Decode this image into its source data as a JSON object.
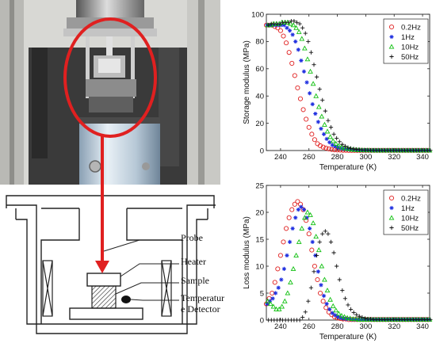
{
  "schematic": {
    "labels": {
      "probe": "Probe",
      "heater": "Heater",
      "sample": "Sample",
      "detector_line1": "Temperatur",
      "detector_line2": "e Detector"
    }
  },
  "colors": {
    "red": "#e02020",
    "blue": "#2030e0",
    "green": "#10c010",
    "black": "#111111",
    "highlight": "#e02020"
  },
  "chart_data": [
    {
      "type": "scatter",
      "title": "",
      "xlabel": "Temperature (K)",
      "ylabel": "Storage modulus (MPa)",
      "xlim": [
        230,
        345
      ],
      "ylim": [
        0,
        100
      ],
      "xticks": [
        240,
        260,
        280,
        300,
        320,
        340
      ],
      "yticks": [
        0,
        20,
        40,
        60,
        80,
        100
      ],
      "legend_position": "top-right",
      "series": [
        {
          "name": "0.2Hz",
          "marker": "circle",
          "color": "#e02020",
          "x0": 230,
          "dx": 2,
          "y": [
            92,
            92,
            92,
            91,
            90,
            88,
            84,
            79,
            72,
            64,
            55,
            46,
            38,
            30,
            23,
            17,
            12,
            8,
            5,
            3.5,
            2.5,
            1.8,
            1.2,
            0.8,
            0.5,
            0.4,
            0.3,
            0.2,
            0.2,
            0.1,
            0.1,
            0.1,
            0.1,
            0.1,
            0.1,
            0.1,
            0.1,
            0.1,
            0.1,
            0.1,
            0.1,
            0.1,
            0.1,
            0.1,
            0.1,
            0.1,
            0.1,
            0.1,
            0.1,
            0.1,
            0.1,
            0.1,
            0.1,
            0.1,
            0.1,
            0.1,
            0.1,
            0.1
          ]
        },
        {
          "name": "1Hz",
          "marker": "star",
          "color": "#2030e0",
          "x0": 230,
          "dx": 2,
          "y": [
            92,
            92,
            92,
            92,
            92,
            92,
            92,
            90,
            88,
            85,
            80,
            74,
            66,
            58,
            50,
            42,
            34,
            27,
            21,
            16,
            12,
            8.5,
            6,
            4,
            3,
            2.2,
            1.6,
            1.2,
            0.9,
            0.6,
            0.5,
            0.4,
            0.3,
            0.2,
            0.2,
            0.2,
            0.1,
            0.1,
            0.1,
            0.1,
            0.1,
            0.1,
            0.1,
            0.1,
            0.1,
            0.1,
            0.1,
            0.1,
            0.1,
            0.1,
            0.1,
            0.1,
            0.1,
            0.1,
            0.1,
            0.1,
            0.1,
            0.1
          ]
        },
        {
          "name": "10Hz",
          "marker": "triangle",
          "color": "#10c010",
          "x0": 230,
          "dx": 2,
          "y": [
            92,
            92,
            93,
            93,
            93,
            94,
            94,
            94,
            93,
            92,
            90,
            87,
            82,
            75,
            67,
            58,
            49,
            40,
            32,
            25,
            19,
            14,
            10,
            7,
            5,
            3.5,
            2.5,
            1.8,
            1.3,
            1,
            0.7,
            0.5,
            0.4,
            0.3,
            0.2,
            0.2,
            0.2,
            0.1,
            0.1,
            0.1,
            0.1,
            0.1,
            0.1,
            0.1,
            0.1,
            0.1,
            0.1,
            0.1,
            0.1,
            0.1,
            0.1,
            0.1,
            0.1,
            0.1,
            0.1,
            0.1,
            0.1,
            0.1
          ]
        },
        {
          "name": "50Hz",
          "marker": "plus",
          "color": "#111111",
          "x0": 230,
          "dx": 2,
          "y": [
            92,
            93,
            93,
            93,
            93,
            94,
            94,
            94,
            95,
            95,
            94,
            93,
            90,
            86,
            80,
            72,
            63,
            54,
            45,
            37,
            29,
            22,
            17,
            12,
            9,
            6.5,
            4.5,
            3.2,
            2.2,
            1.6,
            1.1,
            0.8,
            0.6,
            0.4,
            0.3,
            0.3,
            0.2,
            0.2,
            0.2,
            0.1,
            0.1,
            0.1,
            0.1,
            0.1,
            0.1,
            0.1,
            0.1,
            0.1,
            0.1,
            0.1,
            0.1,
            0.1,
            0.1,
            0.1,
            0.1,
            0.1,
            0.1,
            0.1
          ]
        }
      ]
    },
    {
      "type": "scatter",
      "title": "",
      "xlabel": "Temperature (K)",
      "ylabel": "Loss modulus (MPa)",
      "xlim": [
        230,
        345
      ],
      "ylim": [
        0,
        25
      ],
      "xticks": [
        240,
        260,
        280,
        300,
        320,
        340
      ],
      "yticks": [
        0,
        5,
        10,
        15,
        20,
        25
      ],
      "legend_position": "top-right",
      "series": [
        {
          "name": "0.2Hz",
          "marker": "circle",
          "color": "#e02020",
          "x0": 230,
          "dx": 2,
          "y": [
            3,
            4,
            5,
            7,
            9.5,
            12,
            14.5,
            17,
            19,
            20.5,
            21.5,
            22,
            21.5,
            20.5,
            18.5,
            16,
            13,
            10,
            7.5,
            5,
            3.5,
            2.3,
            1.5,
            1,
            0.6,
            0.4,
            0.3,
            0.2,
            0.2,
            0.1,
            0.1,
            0.1,
            0.1,
            0.1,
            0.1,
            0.1,
            0.1,
            0.1,
            0.1,
            0.1,
            0.1,
            0.1,
            0.1,
            0.1,
            0.1,
            0.1,
            0.1,
            0.1,
            0.1,
            0.1,
            0.1,
            0.1,
            0.1,
            0.1,
            0.1,
            0.1,
            0.1,
            0.1
          ]
        },
        {
          "name": "1Hz",
          "marker": "star",
          "color": "#2030e0",
          "x0": 230,
          "dx": 2,
          "y": [
            3,
            3.5,
            4,
            5,
            6,
            7.5,
            9.5,
            12,
            14.5,
            17,
            19,
            20.5,
            21,
            20.5,
            19,
            17,
            14.5,
            12,
            9,
            6.5,
            4.5,
            3,
            2,
            1.3,
            0.9,
            0.6,
            0.4,
            0.3,
            0.2,
            0.2,
            0.1,
            0.1,
            0.1,
            0.1,
            0.1,
            0.1,
            0.1,
            0.1,
            0.1,
            0.1,
            0.1,
            0.1,
            0.1,
            0.1,
            0.1,
            0.1,
            0.1,
            0.1,
            0.1,
            0.1,
            0.1,
            0.1,
            0.1,
            0.1,
            0.1,
            0.1,
            0.1,
            0.1
          ]
        },
        {
          "name": "10Hz",
          "marker": "triangle",
          "color": "#10c010",
          "x0": 230,
          "dx": 2,
          "y": [
            3.5,
            3,
            2.5,
            2,
            2,
            2.5,
            3.5,
            5,
            7,
            9.5,
            12,
            14.5,
            17,
            19,
            20,
            19.5,
            18,
            15.5,
            13,
            10,
            7.5,
            5.5,
            3.8,
            2.6,
            1.8,
            1.2,
            0.8,
            0.6,
            0.4,
            0.3,
            0.2,
            0.2,
            0.1,
            0.1,
            0.1,
            0.1,
            0.1,
            0.1,
            0.1,
            0.1,
            0.1,
            0.1,
            0.1,
            0.1,
            0.1,
            0.1,
            0.1,
            0.1,
            0.1,
            0.1,
            0.1,
            0.1,
            0.1,
            0.1,
            0.1,
            0.1,
            0.1,
            0.1
          ]
        },
        {
          "name": "50Hz",
          "marker": "plus",
          "color": "#111111",
          "x0": 230,
          "dx": 2,
          "y": [
            0,
            0,
            0,
            0,
            0,
            0,
            0,
            0,
            0,
            0,
            0,
            0,
            0.5,
            1.5,
            3.5,
            6,
            9,
            12,
            14.5,
            16,
            16.5,
            16,
            14.5,
            12.5,
            10,
            7.5,
            5.5,
            4,
            2.8,
            2,
            1.4,
            1,
            0.7,
            0.5,
            0.3,
            0.2,
            0.2,
            0.1,
            0.1,
            0.1,
            0.1,
            0.1,
            0.1,
            0.1,
            0.1,
            0.1,
            0.1,
            0.1,
            0.1,
            0.1,
            0.1,
            0.1,
            0.1,
            0.1,
            0.1,
            0.1,
            0.1,
            0.1
          ]
        }
      ]
    }
  ]
}
